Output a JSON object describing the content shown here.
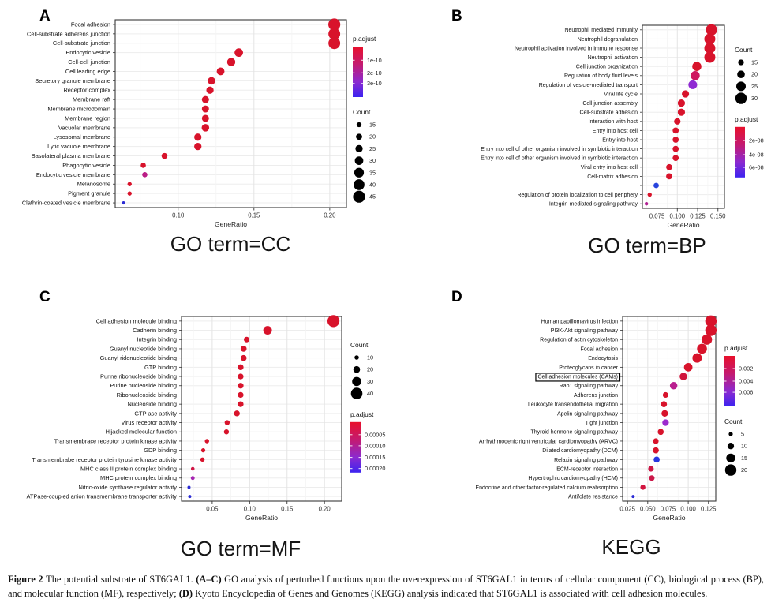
{
  "figure": {
    "background": "#ffffff",
    "dot_red": "#d8132b",
    "count_dot_color": "#000000",
    "gradient_stops": [
      "#e8102c",
      "#c41a70",
      "#8b2ad0",
      "#3c23f0"
    ]
  },
  "chart_data": [
    {
      "id": "A",
      "type": "scatter",
      "panel_letter": "A",
      "title": "GO term=CC",
      "xlabel": "GeneRatio",
      "x_domain": [
        0.0585,
        0.211
      ],
      "x_ticks": [
        {
          "value": 0.1,
          "label": "0.10"
        },
        {
          "value": 0.15,
          "label": "0.15"
        },
        {
          "value": 0.2,
          "label": "0.20"
        }
      ],
      "size_scale": {
        "count_domain": [
          8,
          45
        ],
        "radius_range": [
          2.1,
          7.6
        ]
      },
      "legends": [
        {
          "kind": "padjust",
          "title": "p.adjust",
          "labels": [
            {
              "text": "1e-10",
              "pos": 0.27
            },
            {
              "text": "2e-10",
              "pos": 0.52
            },
            {
              "text": "3e-10",
              "pos": 0.73
            }
          ]
        },
        {
          "kind": "count",
          "title": "Count",
          "values": [
            15,
            20,
            25,
            30,
            35,
            40,
            45
          ]
        }
      ],
      "rows": [
        {
          "label": "Focal adhesion",
          "gene_ratio": 0.203,
          "count": 45,
          "color": "#d8132b"
        },
        {
          "label": "Cell-substrate adherens junction",
          "gene_ratio": 0.203,
          "count": 44,
          "color": "#d8132b"
        },
        {
          "label": "Cell-substrate junction",
          "gene_ratio": 0.203,
          "count": 44,
          "color": "#d8132b"
        },
        {
          "label": "Endocytic vesicle",
          "gene_ratio": 0.14,
          "count": 30,
          "color": "#d8132b"
        },
        {
          "label": "Cell-cell junction",
          "gene_ratio": 0.135,
          "count": 29,
          "color": "#d8132b"
        },
        {
          "label": "Cell leading edge",
          "gene_ratio": 0.128,
          "count": 27,
          "color": "#d8132b"
        },
        {
          "label": "Secretory granule membrane",
          "gene_ratio": 0.122,
          "count": 26,
          "color": "#d8132b"
        },
        {
          "label": "Receptor complex",
          "gene_ratio": 0.121,
          "count": 25,
          "color": "#d8132b"
        },
        {
          "label": "Membrane raft",
          "gene_ratio": 0.118,
          "count": 24,
          "color": "#d8132b"
        },
        {
          "label": "Membrane microdomain",
          "gene_ratio": 0.118,
          "count": 24,
          "color": "#d8132b"
        },
        {
          "label": "Membrane region",
          "gene_ratio": 0.118,
          "count": 24,
          "color": "#d8132b"
        },
        {
          "label": "Vacuolar membrane",
          "gene_ratio": 0.118,
          "count": 26,
          "color": "#d8132b"
        },
        {
          "label": "Lysosomal membrane",
          "gene_ratio": 0.113,
          "count": 25,
          "color": "#d8132b"
        },
        {
          "label": "Lytic vacuole membrane",
          "gene_ratio": 0.113,
          "count": 25,
          "color": "#d8132b"
        },
        {
          "label": "Basolateral plasma membrane",
          "gene_ratio": 0.091,
          "count": 19,
          "color": "#d8132b"
        },
        {
          "label": "Phagocytic vesicle",
          "gene_ratio": 0.077,
          "count": 16,
          "color": "#d8132b"
        },
        {
          "label": "Endocytic vesicle membrane",
          "gene_ratio": 0.078,
          "count": 16,
          "color": "#bb1e86"
        },
        {
          "label": "Melanosome",
          "gene_ratio": 0.068,
          "count": 12,
          "color": "#d8132b"
        },
        {
          "label": "Pigment granule",
          "gene_ratio": 0.068,
          "count": 12,
          "color": "#d8132b"
        },
        {
          "label": "Clathrin-coated vesicle membrane",
          "gene_ratio": 0.064,
          "count": 8,
          "color": "#2b2bd5"
        }
      ]
    },
    {
      "id": "B",
      "type": "scatter",
      "panel_letter": "B",
      "title": "GO term=BP",
      "xlabel": "GeneRatio",
      "x_domain": [
        0.057,
        0.158
      ],
      "x_ticks": [
        {
          "value": 0.075,
          "label": "0.075"
        },
        {
          "value": 0.1,
          "label": "0.100"
        },
        {
          "value": 0.125,
          "label": "0.125"
        },
        {
          "value": 0.15,
          "label": "0.150"
        }
      ],
      "size_scale": {
        "count_domain": [
          9,
          30
        ],
        "radius_range": [
          2.2,
          7.2
        ]
      },
      "legends": [
        {
          "kind": "count",
          "title": "Count",
          "values": [
            15,
            20,
            25,
            30
          ]
        },
        {
          "kind": "padjust",
          "title": "p.adjust",
          "labels": [
            {
              "text": "2e-08",
              "pos": 0.27
            },
            {
              "text": "4e-08",
              "pos": 0.55
            },
            {
              "text": "6e-08",
              "pos": 0.8
            }
          ]
        }
      ],
      "rows": [
        {
          "label": "Neutrophil mediated immunity",
          "gene_ratio": 0.142,
          "count": 30,
          "color": "#d8132b"
        },
        {
          "label": "Neutrophil degranulation",
          "gene_ratio": 0.14,
          "count": 29,
          "color": "#d8132b"
        },
        {
          "label": "Neutrophil activation involved in immune response",
          "gene_ratio": 0.14,
          "count": 29,
          "color": "#d8132b"
        },
        {
          "label": "Neutrophil activation",
          "gene_ratio": 0.14,
          "count": 29,
          "color": "#d8132b"
        },
        {
          "label": "Cell junction organization",
          "gene_ratio": 0.124,
          "count": 24,
          "color": "#d8132b"
        },
        {
          "label": "Regulation of body fluid levels",
          "gene_ratio": 0.122,
          "count": 24,
          "color": "#ce1760"
        },
        {
          "label": "Regulation of vesicle-mediated transport",
          "gene_ratio": 0.119,
          "count": 23,
          "color": "#8f2ad2"
        },
        {
          "label": "Viral life cycle",
          "gene_ratio": 0.11,
          "count": 19,
          "color": "#d8132b"
        },
        {
          "label": "Cell junction assembly",
          "gene_ratio": 0.105,
          "count": 19,
          "color": "#d8132b"
        },
        {
          "label": "Cell-substrate adhesion",
          "gene_ratio": 0.105,
          "count": 19,
          "color": "#d8132b"
        },
        {
          "label": "Interaction with host",
          "gene_ratio": 0.1,
          "count": 17,
          "color": "#d8132b"
        },
        {
          "label": "Entry into host cell",
          "gene_ratio": 0.098,
          "count": 16,
          "color": "#d8132b"
        },
        {
          "label": "Entry into host",
          "gene_ratio": 0.098,
          "count": 16,
          "color": "#d8132b"
        },
        {
          "label": "Entry into cell of other organism involved in symbiotic interaction",
          "gene_ratio": 0.098,
          "count": 16,
          "color": "#d8132b"
        },
        {
          "label": "Entry into cell of other organism involved in symbiotic interaction",
          "gene_ratio": 0.098,
          "count": 16,
          "color": "#d8132b"
        },
        {
          "label": "Viral entry into host cell",
          "gene_ratio": 0.09,
          "count": 16,
          "color": "#d8132b"
        },
        {
          "label": "Cell-matrix adhesion",
          "gene_ratio": 0.09,
          "count": 16,
          "color": "#d8132b"
        },
        {
          "label": "",
          "gene_ratio": 0.074,
          "count": 14,
          "color": "#2743dd"
        },
        {
          "label": "Regulation of protein localization to cell periphery",
          "gene_ratio": 0.066,
          "count": 11,
          "color": "#d8132b"
        },
        {
          "label": "Integrin-mediated signaling pathway",
          "gene_ratio": 0.062,
          "count": 9,
          "color": "#b12092"
        }
      ]
    },
    {
      "id": "C",
      "type": "scatter",
      "panel_letter": "C",
      "title": "GO term=MF",
      "xlabel": "GeneRatio",
      "x_domain": [
        0.009,
        0.223
      ],
      "x_ticks": [
        {
          "value": 0.05,
          "label": "0.05"
        },
        {
          "value": 0.1,
          "label": "0.10"
        },
        {
          "value": 0.15,
          "label": "0.15"
        },
        {
          "value": 0.2,
          "label": "0.20"
        }
      ],
      "size_scale": {
        "count_domain": [
          5,
          42
        ],
        "radius_range": [
          2.0,
          7.6
        ]
      },
      "legends": [
        {
          "kind": "count",
          "title": "Count",
          "values": [
            10,
            20,
            30,
            40
          ]
        },
        {
          "kind": "padjust",
          "title": "p.adjust",
          "labels": [
            {
              "text": "0.00005",
              "pos": 0.25
            },
            {
              "text": "0.00010",
              "pos": 0.47
            },
            {
              "text": "0.00015",
              "pos": 0.7
            },
            {
              "text": "0.00020",
              "pos": 0.92
            }
          ]
        }
      ],
      "rows": [
        {
          "label": "Cell adhesion molecule binding",
          "gene_ratio": 0.212,
          "count": 42,
          "color": "#d8132b"
        },
        {
          "label": "Cadherin binding",
          "gene_ratio": 0.124,
          "count": 28,
          "color": "#d8132b"
        },
        {
          "label": "Integrin binding",
          "gene_ratio": 0.096,
          "count": 15,
          "color": "#d8132b"
        },
        {
          "label": "Guanyl nucleotide binding",
          "gene_ratio": 0.092,
          "count": 17,
          "color": "#d8132b"
        },
        {
          "label": "Guanyl ridonucleotide binding",
          "gene_ratio": 0.092,
          "count": 17,
          "color": "#d8132b"
        },
        {
          "label": "GTP binding",
          "gene_ratio": 0.088,
          "count": 16,
          "color": "#d8132b"
        },
        {
          "label": "Purine ribonucleoside binding",
          "gene_ratio": 0.088,
          "count": 16,
          "color": "#d8132b"
        },
        {
          "label": "Purine nucleoside binding",
          "gene_ratio": 0.088,
          "count": 16,
          "color": "#d8132b"
        },
        {
          "label": "Ribonucleoside binding",
          "gene_ratio": 0.088,
          "count": 16,
          "color": "#d8132b"
        },
        {
          "label": "Nucleoside binding",
          "gene_ratio": 0.088,
          "count": 16,
          "color": "#d8132b"
        },
        {
          "label": "GTP ase activity",
          "gene_ratio": 0.083,
          "count": 16,
          "color": "#d8132b"
        },
        {
          "label": "Virus receptor activity",
          "gene_ratio": 0.07,
          "count": 13,
          "color": "#d8132b"
        },
        {
          "label": "Hijacked molecular function",
          "gene_ratio": 0.069,
          "count": 13,
          "color": "#d8132b"
        },
        {
          "label": "Transmembrace receptor protein kinase activity",
          "gene_ratio": 0.043,
          "count": 10,
          "color": "#d8132b"
        },
        {
          "label": "GDP binding",
          "gene_ratio": 0.038,
          "count": 9,
          "color": "#d8132b"
        },
        {
          "label": "Transmembrabe receptor protein tyrosine kinase activity",
          "gene_ratio": 0.037,
          "count": 10,
          "color": "#d8132b"
        },
        {
          "label": "MHC class II protein complex binding",
          "gene_ratio": 0.024,
          "count": 7,
          "color": "#d01545"
        },
        {
          "label": "MHC protein complex binding",
          "gene_ratio": 0.024,
          "count": 8,
          "color": "#a625b2"
        },
        {
          "label": "Nitric-oxide synthase regulator activity",
          "gene_ratio": 0.019,
          "count": 5,
          "color": "#2b2bd5"
        },
        {
          "label": "ATPase-coupled anion transmembrane transporter activity",
          "gene_ratio": 0.02,
          "count": 5,
          "color": "#2b2bd5"
        }
      ]
    },
    {
      "id": "D",
      "type": "scatter",
      "panel_letter": "D",
      "title": "KEGG",
      "xlabel": "GeneRatio",
      "x_domain": [
        0.019,
        0.134
      ],
      "x_ticks": [
        {
          "value": 0.025,
          "label": "0.025"
        },
        {
          "value": 0.05,
          "label": "0.050"
        },
        {
          "value": 0.075,
          "label": "0.075"
        },
        {
          "value": 0.1,
          "label": "0.100"
        },
        {
          "value": 0.125,
          "label": "0.125"
        }
      ],
      "size_scale": {
        "count_domain": [
          3,
          20
        ],
        "radius_range": [
          2.0,
          7.2
        ]
      },
      "legends": [
        {
          "kind": "padjust",
          "title": "p.adjust",
          "labels": [
            {
              "text": "0.002",
              "pos": 0.25
            },
            {
              "text": "0.004",
              "pos": 0.5
            },
            {
              "text": "0.006",
              "pos": 0.72
            }
          ]
        },
        {
          "kind": "count",
          "title": "Count",
          "values": [
            5,
            10,
            15,
            20
          ]
        }
      ],
      "rows": [
        {
          "label": "Human papillomavirus infection",
          "gene_ratio": 0.128,
          "count": 20,
          "color": "#d8132b"
        },
        {
          "label": "PI3K-Akt signaling pathway",
          "gene_ratio": 0.128,
          "count": 20,
          "color": "#d8132b"
        },
        {
          "label": "Regulation of actin cytoskeleton",
          "gene_ratio": 0.123,
          "count": 18,
          "color": "#d8132b"
        },
        {
          "label": "Focal adhesion",
          "gene_ratio": 0.117,
          "count": 17,
          "color": "#d8132b"
        },
        {
          "label": "Endocytosis",
          "gene_ratio": 0.111,
          "count": 16,
          "color": "#d8132b"
        },
        {
          "label": "Proteoglycans in cancer",
          "gene_ratio": 0.1,
          "count": 14,
          "color": "#d8132b"
        },
        {
          "label": "Cell adhesion molecules (CAMs)",
          "gene_ratio": 0.094,
          "count": 12,
          "color": "#d0143c",
          "boxed": true
        },
        {
          "label": "Rap1 signaling pathway",
          "gene_ratio": 0.082,
          "count": 12,
          "color": "#b91f8f"
        },
        {
          "label": "Adherens junction",
          "gene_ratio": 0.072,
          "count": 8,
          "color": "#d8132b"
        },
        {
          "label": "Leukocyte transendothelial migration",
          "gene_ratio": 0.07,
          "count": 9,
          "color": "#d8132b"
        },
        {
          "label": "Apelin signaling pathway",
          "gene_ratio": 0.071,
          "count": 10,
          "color": "#d8132b"
        },
        {
          "label": "Tight junction",
          "gene_ratio": 0.072,
          "count": 10,
          "color": "#9c2bce"
        },
        {
          "label": "Thyroid hormone signaling pathway",
          "gene_ratio": 0.066,
          "count": 9,
          "color": "#d8132b"
        },
        {
          "label": "Arrhythmogenic right ventricular cardiomyopathy (ARVC)",
          "gene_ratio": 0.06,
          "count": 8,
          "color": "#d8132b"
        },
        {
          "label": "Dilated cardiomyopathy (DCM)",
          "gene_ratio": 0.06,
          "count": 9,
          "color": "#d8132b"
        },
        {
          "label": "Relaxin signaling pathway",
          "gene_ratio": 0.061,
          "count": 9,
          "color": "#2736e0"
        },
        {
          "label": "ECM-receptor interaction",
          "gene_ratio": 0.054,
          "count": 8,
          "color": "#cd1646"
        },
        {
          "label": "Hypertrophic cardiomyopathy (HCM)",
          "gene_ratio": 0.055,
          "count": 8,
          "color": "#cb1849"
        },
        {
          "label": "Endocrine and other factor-regulated calcium reabsorption",
          "gene_ratio": 0.044,
          "count": 7,
          "color": "#d2153f"
        },
        {
          "label": "Antifolate resistance",
          "gene_ratio": 0.032,
          "count": 3,
          "color": "#2b2bd5"
        }
      ]
    }
  ],
  "caption": {
    "segments": [
      {
        "text": "Figure 2 ",
        "bold": true
      },
      {
        "text": "The potential substrate of ST6GAL1. ",
        "bold": false
      },
      {
        "text": "(A–C)",
        "bold": true
      },
      {
        "text": " GO analysis of perturbed functions upon the overexpression of ST6GAL1 in terms of cellular component (CC), biological process (BP), and molecular function (MF), respectively; ",
        "bold": false
      },
      {
        "text": "(D)",
        "bold": true
      },
      {
        "text": " Kyoto Encyclopedia of Genes and Genomes (KEGG) analysis indicated that ST6GAL1 is associated with cell adhesion molecules.",
        "bold": false
      }
    ]
  }
}
